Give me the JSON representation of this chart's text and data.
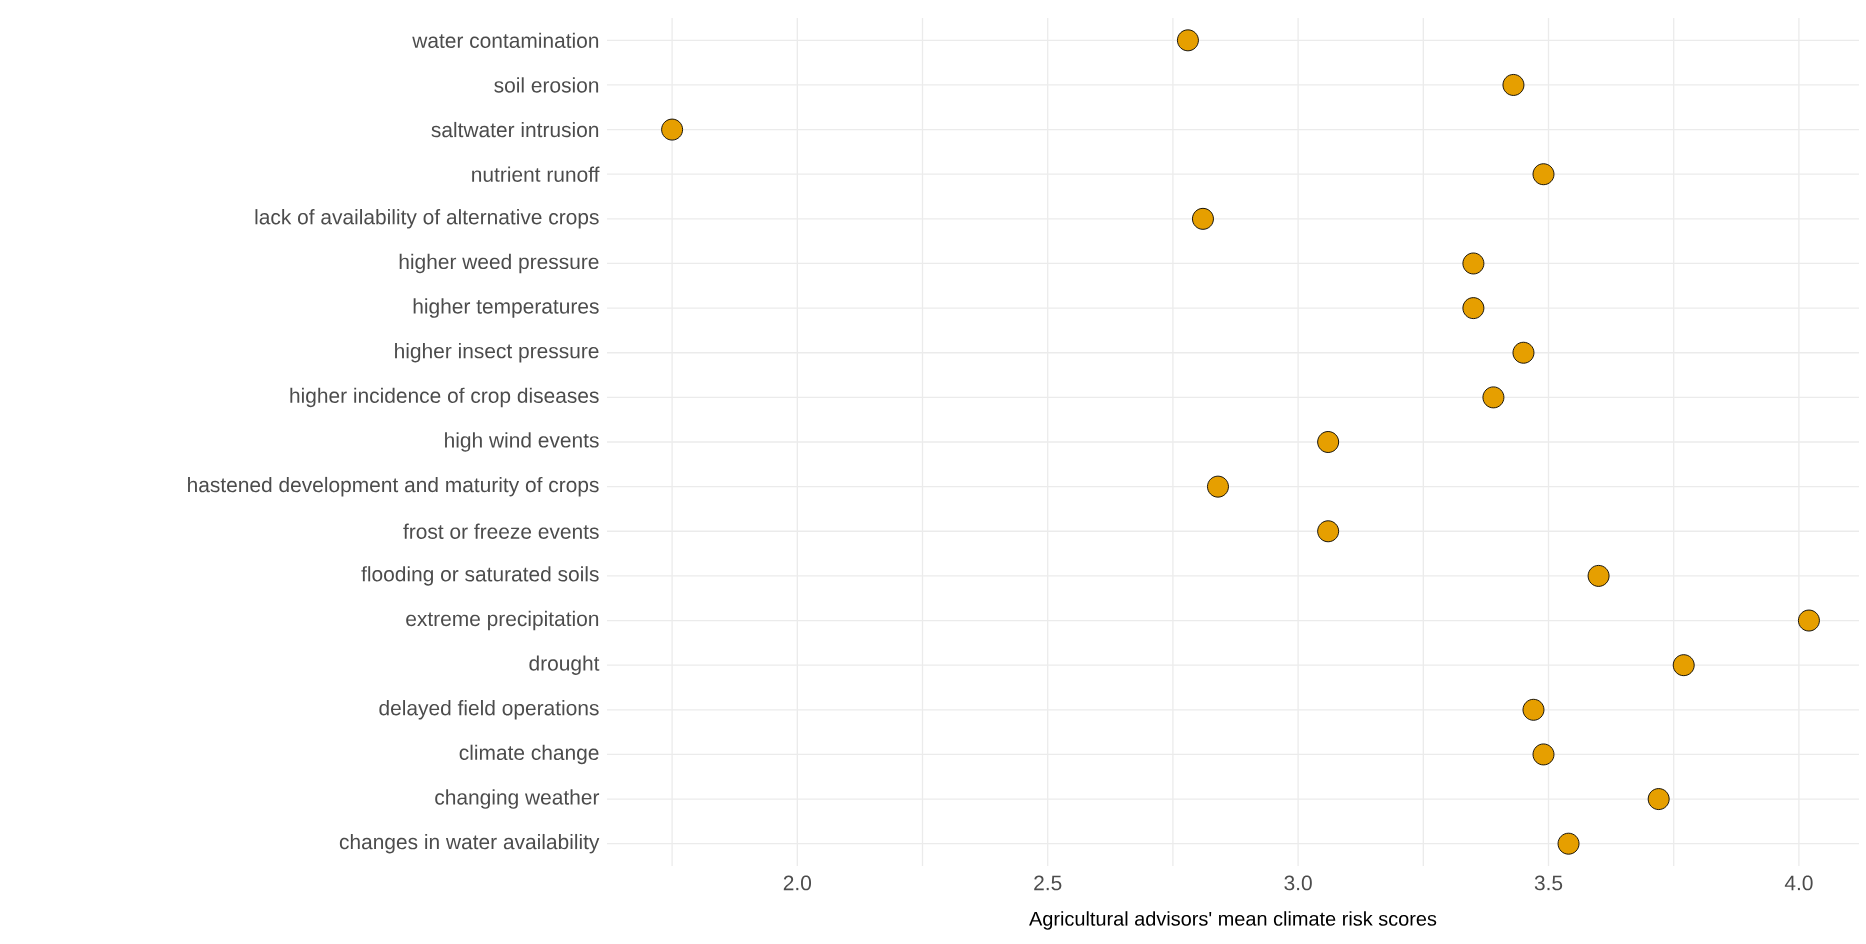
{
  "chart_data": {
    "type": "scatter",
    "orientation": "horizontal",
    "xlabel": "Agricultural advisors' mean climate risk scores",
    "categories": [
      "water contamination",
      "soil erosion",
      "saltwater intrusion",
      "nutrient runoff",
      "lack of availability of alternative crops",
      "higher weed pressure",
      "higher temperatures",
      "higher insect pressure",
      "higher incidence of crop diseases",
      "high wind events",
      "hastened development and maturity of crops",
      "frost or freeze events",
      "flooding or saturated soils",
      "extreme precipitation",
      "drought",
      "delayed field operations",
      "climate change",
      "changing weather",
      "changes in water availability"
    ],
    "values": [
      2.78,
      3.43,
      1.75,
      3.49,
      2.81,
      3.35,
      3.35,
      3.45,
      3.39,
      3.06,
      2.84,
      3.06,
      3.6,
      4.02,
      3.77,
      3.47,
      3.49,
      3.72,
      3.54
    ],
    "color": "#e69f00",
    "grid": true,
    "xlim": [
      1.62,
      4.12
    ],
    "xticks": [
      {
        "value": 1.75,
        "label": null
      },
      {
        "value": 2.0,
        "label": "2.0"
      },
      {
        "value": 2.25,
        "label": null
      },
      2.5,
      {
        "value": 2.75,
        "label": null
      },
      {
        "value": 3.0,
        "label": "3.0"
      },
      {
        "value": 3.25,
        "label": null
      },
      3.5,
      {
        "value": 3.75,
        "label": null
      },
      {
        "value": 4.0,
        "label": "4.0"
      }
    ]
  }
}
